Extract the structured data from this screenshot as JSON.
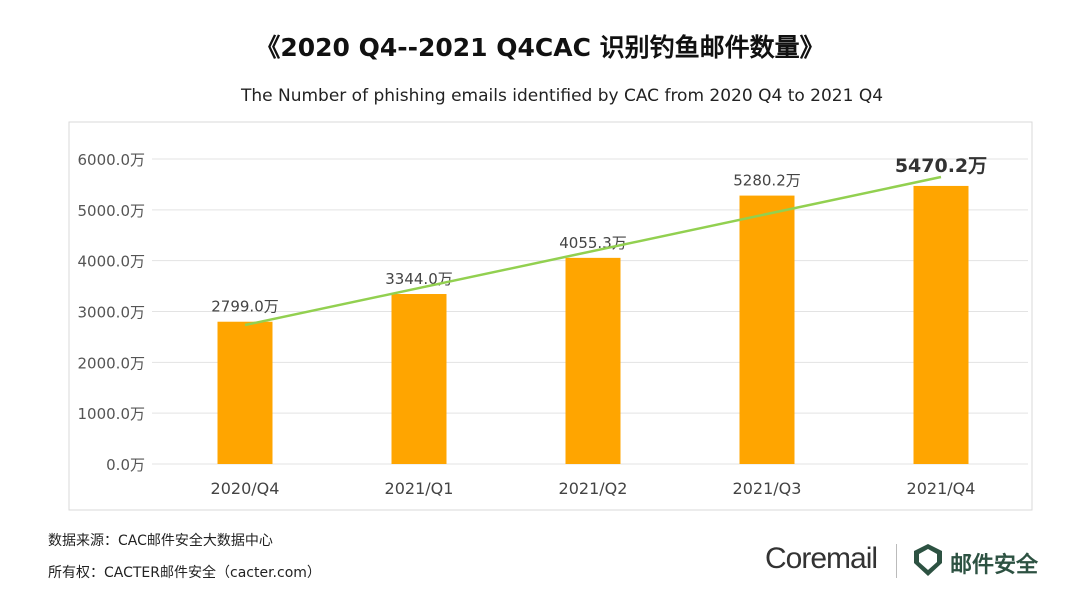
{
  "title": "《2020 Q4--2021 Q4CAC 识别钓鱼邮件数量》",
  "subtitle": "The Number of phishing emails identified by CAC from 2020 Q4 to 2021 Q4",
  "chart_data": {
    "type": "bar",
    "title": "《2020 Q4--2021 Q4CAC 识别钓鱼邮件数量》",
    "subtitle": "The Number of phishing emails identified by CAC from 2020 Q4 to 2021 Q4",
    "categories": [
      "2020/Q4",
      "2021/Q1",
      "2021/Q2",
      "2021/Q3",
      "2021/Q4"
    ],
    "values": [
      2799.0,
      3344.0,
      4055.3,
      5280.2,
      5470.2
    ],
    "data_labels": [
      "2799.0万",
      "3344.0万",
      "4055.3万",
      "5280.2万",
      "5470.2万"
    ],
    "yticks": [
      "0.0万",
      "1000.0万",
      "2000.0万",
      "3000.0万",
      "4000.0万",
      "5000.0万",
      "6000.0万"
    ],
    "ylim": [
      0,
      6000
    ],
    "grid": true,
    "trendline": "linear",
    "bar_color": "#FFA500",
    "trend_color": "#92D050"
  },
  "footer": {
    "source": "数据来源：CAC邮件安全大数据中心",
    "copyright": "所有权：CACTER邮件安全（cacter.com）"
  },
  "logo": {
    "coremail": "Coremail",
    "cacter": "邮件安全"
  }
}
